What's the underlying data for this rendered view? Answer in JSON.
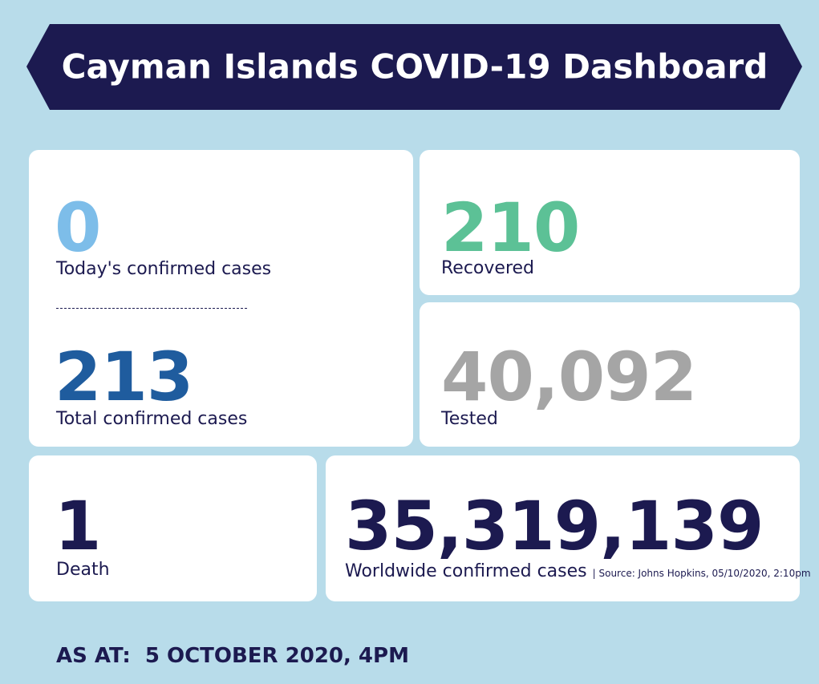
{
  "header": {
    "title": "Cayman Islands COVID-19 Dashboard"
  },
  "cards": [
    {
      "value": "0",
      "label": "Today's confirmed cases"
    },
    {
      "value": "213",
      "label": "Total confirmed cases"
    },
    {
      "value": "210",
      "label": "Recovered"
    },
    {
      "value": "40,092",
      "label": "Tested"
    },
    {
      "value": "1",
      "label": "Death"
    },
    {
      "value": "35,319,139",
      "label": "Worldwide confirmed cases",
      "source": "| Source: Johns Hopkins, 05/10/2020, 2:10pm"
    }
  ],
  "footer": {
    "as_at": "AS AT:  5 OCTOBER 2020, 4PM"
  }
}
